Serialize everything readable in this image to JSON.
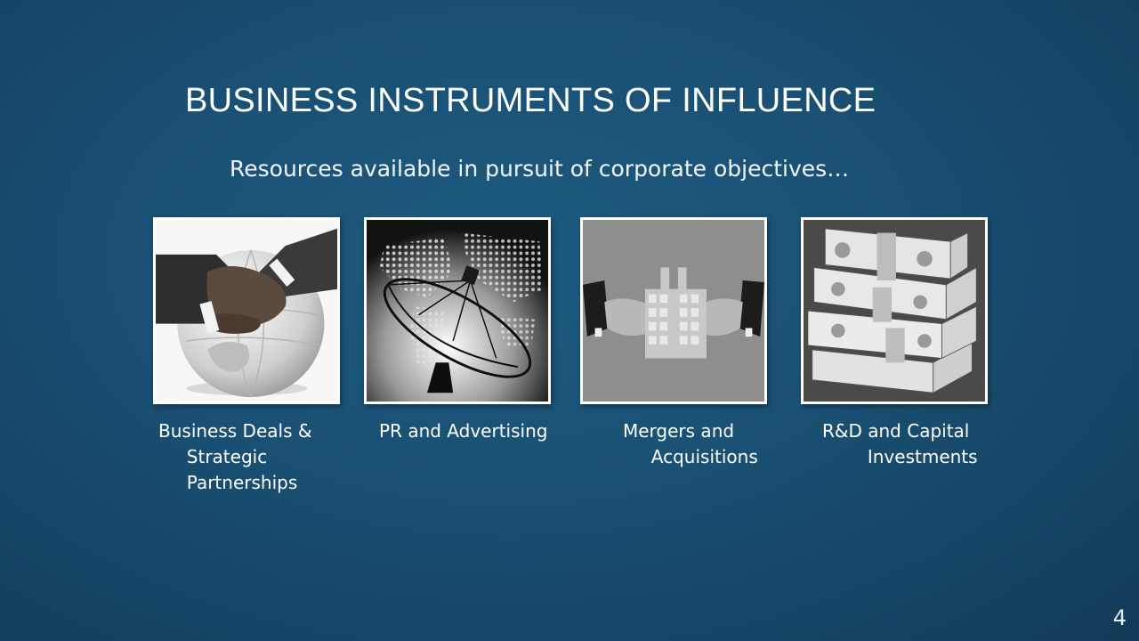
{
  "slide": {
    "title": "BUSINESS INSTRUMENTS OF INFLUENCE",
    "subtitle": "Resources available in pursuit of corporate objectives…",
    "page_number": "4"
  },
  "tiles": [
    {
      "caption": "Business Deals &\n     Strategic\n     Partnerships",
      "icon": "handshake-globe-image"
    },
    {
      "caption": "PR and Advertising",
      "icon": "satellite-dish-world-map-image"
    },
    {
      "caption": "Mergers and\n     Acquisitions",
      "icon": "merging-buildings-image"
    },
    {
      "caption": "R&D and Capital\n        Investments",
      "icon": "money-stacks-image"
    }
  ]
}
